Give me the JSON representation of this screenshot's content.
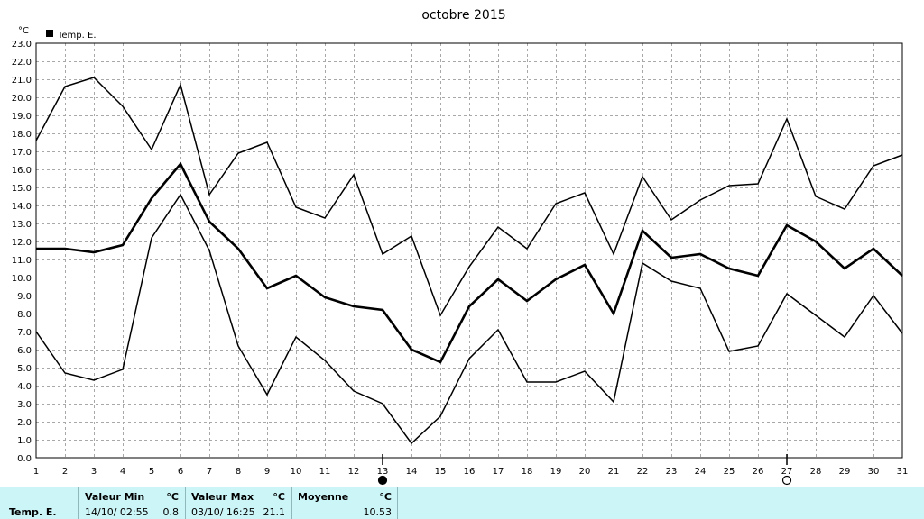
{
  "chart_data": {
    "type": "line",
    "title": "octobre 2015",
    "unit_label": "°C",
    "legend": {
      "label": "Temp. E.",
      "position": "top-left"
    },
    "x": [
      1,
      2,
      3,
      4,
      5,
      6,
      7,
      8,
      9,
      10,
      11,
      12,
      13,
      14,
      15,
      16,
      17,
      18,
      19,
      20,
      21,
      22,
      23,
      24,
      25,
      26,
      27,
      28,
      29,
      30,
      31
    ],
    "xlim": [
      1,
      31
    ],
    "ylim": [
      0,
      23
    ],
    "y_tick_step": 1.0,
    "grid": true,
    "series": [
      {
        "role": "max",
        "values": [
          17.6,
          20.6,
          21.1,
          19.5,
          17.1,
          20.7,
          14.6,
          16.9,
          17.5,
          13.9,
          13.3,
          15.7,
          11.3,
          12.3,
          7.9,
          10.6,
          12.8,
          11.6,
          14.1,
          14.7,
          11.3,
          15.6,
          13.2,
          14.3,
          15.1,
          15.2,
          18.8,
          14.5,
          13.8,
          16.2,
          16.8
        ]
      },
      {
        "role": "mean",
        "values": [
          11.6,
          11.6,
          11.4,
          11.8,
          14.4,
          16.3,
          13.1,
          11.6,
          9.4,
          10.1,
          8.9,
          8.4,
          8.2,
          6.0,
          5.3,
          8.4,
          9.9,
          8.7,
          9.9,
          10.7,
          8.0,
          12.6,
          11.1,
          11.3,
          10.5,
          10.1,
          12.9,
          12.0,
          10.5,
          11.6,
          10.1
        ]
      },
      {
        "role": "min",
        "values": [
          7.0,
          4.7,
          4.3,
          4.9,
          12.2,
          14.6,
          11.5,
          6.2,
          3.5,
          6.7,
          5.4,
          3.7,
          3.0,
          0.8,
          2.3,
          5.5,
          7.1,
          4.2,
          4.2,
          4.8,
          3.1,
          10.8,
          9.8,
          9.4,
          5.9,
          6.2,
          9.1,
          7.9,
          6.7,
          9.0,
          6.9
        ]
      }
    ],
    "colors": {
      "line": "#000000",
      "grid": "#a8a8a8",
      "footer_bg": "#ccf5f8"
    },
    "moon_markers": [
      {
        "day": 13,
        "icon": "new-moon-icon"
      },
      {
        "day": 27,
        "icon": "full-moon-icon"
      }
    ]
  },
  "stats": {
    "label": "Temp. E.",
    "min": {
      "title": "Valeur Min",
      "unit": "°C",
      "when": "14/10/  02:55",
      "value": "0.8"
    },
    "max": {
      "title": "Valeur Max",
      "unit": "°C",
      "when": "03/10/  16:25",
      "value": "21.1"
    },
    "avg": {
      "title": "Moyenne",
      "unit": "°C",
      "value": "10.53"
    }
  }
}
